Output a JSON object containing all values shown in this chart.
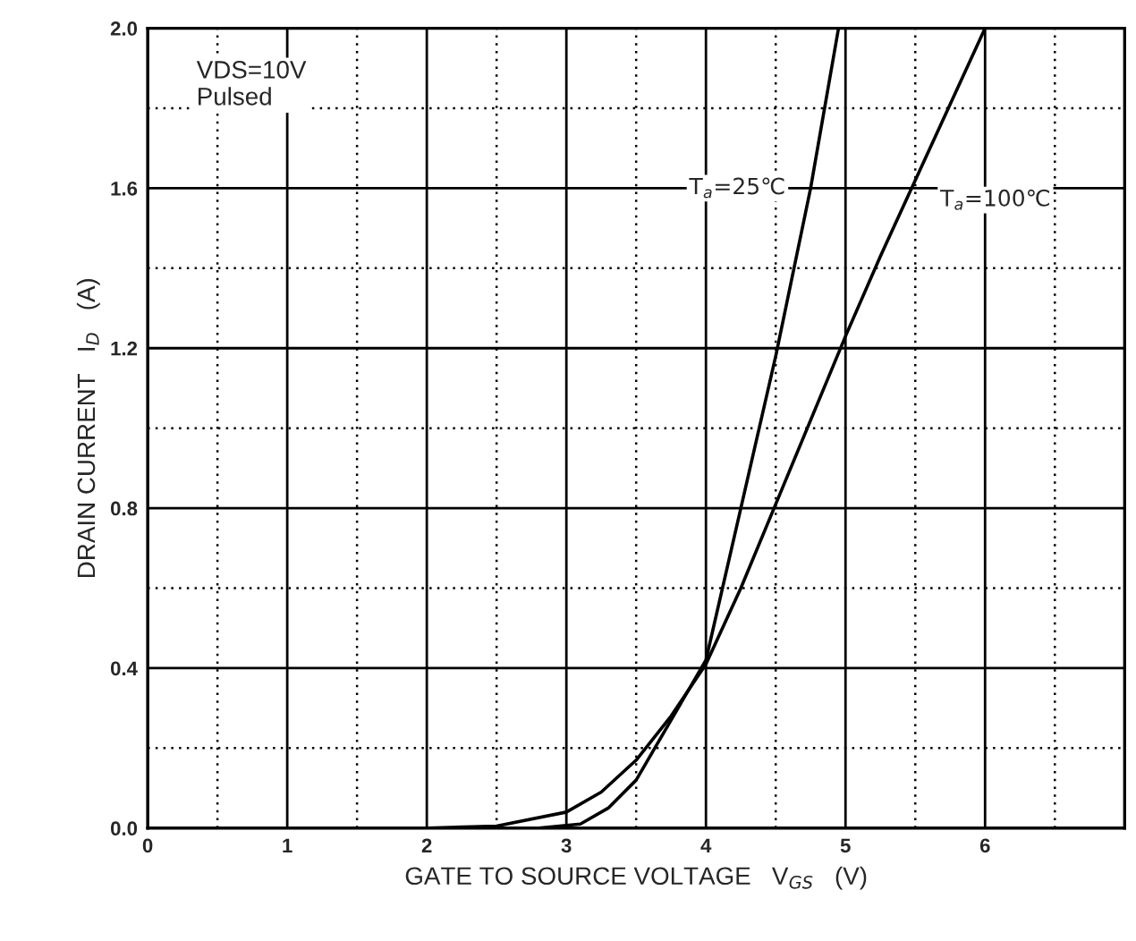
{
  "chart_data": {
    "type": "line",
    "xlabel": "GATE TO SOURCE VOLTAGE   V$_{GS}$   (V)",
    "ylabel": "DRAIN CURRENT   I$_{D}$   (A)",
    "annotations": [
      "VDS=10V\nPulsed"
    ],
    "xlim": [
      0,
      7
    ],
    "xticks": [
      0,
      {
        "value": 0.5,
        "label": null
      },
      1,
      {
        "value": 1.5,
        "label": null
      },
      2,
      {
        "value": 2.5,
        "label": null
      },
      3,
      {
        "value": 3.5,
        "label": null
      },
      4,
      {
        "value": 4.5,
        "label": null
      },
      5,
      {
        "value": 5.5,
        "label": null
      },
      6,
      {
        "value": 6.5,
        "label": null
      }
    ],
    "ylim": [
      0,
      2
    ],
    "yticks": [
      {
        "value": 0,
        "label": "0.0"
      },
      {
        "value": 0.2,
        "label": null
      },
      {
        "value": 0.4,
        "label": "0.4"
      },
      {
        "value": 0.6,
        "label": null
      },
      {
        "value": 0.8,
        "label": "0.8"
      },
      {
        "value": 1.0,
        "label": null
      },
      {
        "value": 1.2,
        "label": "1.2"
      },
      {
        "value": 1.4,
        "label": null
      },
      {
        "value": 1.6,
        "label": "1.6"
      },
      {
        "value": 1.8,
        "label": null
      },
      {
        "value": 2.0,
        "label": "2.0"
      }
    ],
    "grid": true,
    "marker": "none",
    "line_style": "solid",
    "series": [
      {
        "name": "T$_{a}$=25℃",
        "color": "#000000",
        "x": [
          0.1,
          1,
          2,
          2.8,
          3.1,
          3.3,
          3.5,
          3.75,
          4.0,
          4.25,
          4.5,
          4.75,
          4.95
        ],
        "values": [
          0,
          0,
          0,
          0,
          0.01,
          0.05,
          0.12,
          0.27,
          0.42,
          0.8,
          1.18,
          1.6,
          2.0
        ]
      },
      {
        "name": "T$_{a}$=100℃",
        "color": "#000000",
        "x": [
          0.1,
          1,
          2,
          2.5,
          3.0,
          3.25,
          3.5,
          3.75,
          4.0,
          4.25,
          4.5,
          5.0,
          5.25,
          5.5,
          6.0
        ],
        "values": [
          0,
          0,
          0,
          0.005,
          0.04,
          0.09,
          0.17,
          0.28,
          0.41,
          0.6,
          0.81,
          1.23,
          1.43,
          1.62,
          2.0
        ]
      }
    ]
  }
}
